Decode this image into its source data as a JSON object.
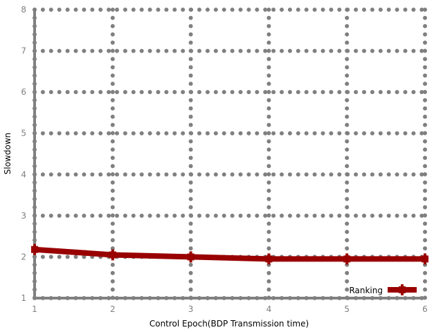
{
  "chart_data": {
    "type": "line",
    "title": "",
    "xlabel": "Control Epoch(BDP Transmission time)",
    "ylabel": "Slowdown",
    "xlim": [
      1,
      6
    ],
    "ylim": [
      1,
      8
    ],
    "x_ticks": [
      "1",
      "2",
      "3",
      "4",
      "5",
      "6"
    ],
    "y_ticks": [
      "1",
      "2",
      "3",
      "4",
      "5",
      "6",
      "7",
      "8"
    ],
    "grid": true,
    "legend_position": "bottom-right",
    "series": [
      {
        "name": "Ranking",
        "color": "#990000",
        "marker": "plus",
        "x": [
          1,
          2,
          3,
          4,
          5,
          6
        ],
        "values": [
          2.18,
          2.05,
          2.0,
          1.95,
          1.95,
          1.95
        ]
      }
    ],
    "colors": {
      "grid": "#808080",
      "axis": "#808080",
      "tick_text": "#7f7f7f"
    }
  }
}
